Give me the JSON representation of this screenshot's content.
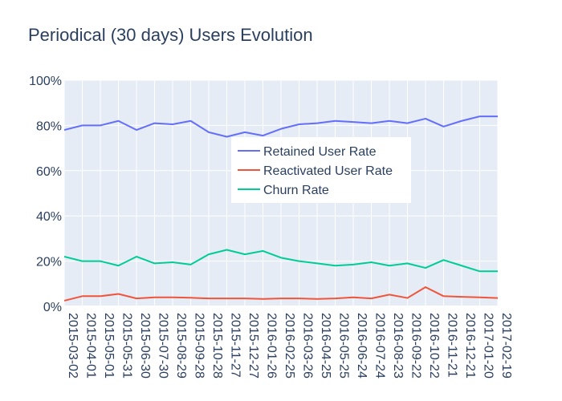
{
  "chart_data": {
    "type": "line",
    "title": "Periodical (30 days) Users Evolution",
    "xlabel": "",
    "ylabel": "",
    "y_range": [
      0,
      1
    ],
    "y_ticks": [
      0,
      0.2,
      0.4,
      0.6,
      0.8,
      1.0
    ],
    "y_tick_labels": [
      "0%",
      "20%",
      "40%",
      "60%",
      "80%",
      "100%"
    ],
    "grid": true,
    "legend_position": "center",
    "colors": {
      "plot_background": "#e5ecf6",
      "grid": "#ffffff",
      "text": "#2a3f5f"
    },
    "x": [
      "2015-03-02",
      "2015-04-01",
      "2015-05-01",
      "2015-05-31",
      "2015-06-30",
      "2015-07-30",
      "2015-08-29",
      "2015-09-28",
      "2015-10-28",
      "2015-11-27",
      "2015-12-27",
      "2016-01-26",
      "2016-02-25",
      "2016-03-26",
      "2016-04-25",
      "2016-05-25",
      "2016-06-24",
      "2016-07-24",
      "2016-08-23",
      "2016-09-22",
      "2016-10-22",
      "2016-11-21",
      "2016-12-21",
      "2017-01-20",
      "2017-02-19"
    ],
    "series": [
      {
        "name": "Retained User Rate",
        "color": "#636efa",
        "values": [
          0.78,
          0.8,
          0.8,
          0.82,
          0.78,
          0.81,
          0.805,
          0.82,
          0.77,
          0.75,
          0.77,
          0.755,
          0.785,
          0.805,
          0.81,
          0.82,
          0.815,
          0.81,
          0.82,
          0.81,
          0.83,
          0.795,
          0.82,
          0.84,
          0.84
        ]
      },
      {
        "name": "Reactivated User Rate",
        "color": "#ef553b",
        "values": [
          0.025,
          0.045,
          0.045,
          0.055,
          0.035,
          0.04,
          0.04,
          0.038,
          0.035,
          0.035,
          0.035,
          0.033,
          0.035,
          0.035,
          0.033,
          0.035,
          0.04,
          0.035,
          0.052,
          0.037,
          0.085,
          0.045,
          0.042,
          0.04,
          0.037
        ]
      },
      {
        "name": "Churn Rate",
        "color": "#00cc96",
        "values": [
          0.22,
          0.2,
          0.2,
          0.18,
          0.22,
          0.19,
          0.195,
          0.185,
          0.23,
          0.25,
          0.23,
          0.245,
          0.215,
          0.2,
          0.19,
          0.18,
          0.185,
          0.195,
          0.18,
          0.19,
          0.17,
          0.205,
          0.18,
          0.155,
          0.155
        ]
      }
    ]
  }
}
